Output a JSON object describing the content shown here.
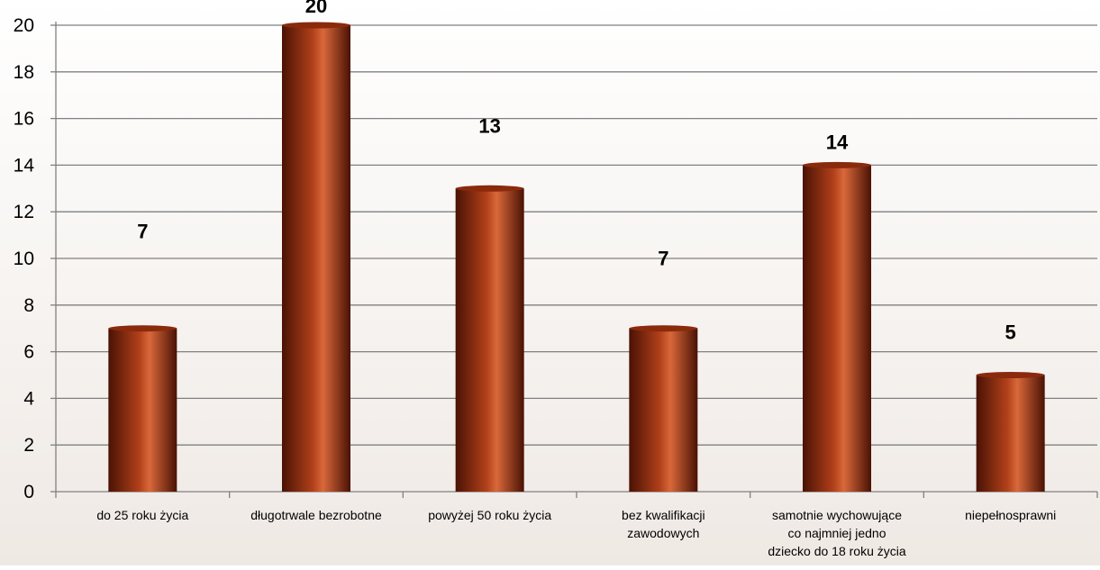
{
  "chart_data": {
    "type": "bar",
    "title": "",
    "xlabel": "",
    "ylabel": "",
    "categories": [
      [
        "do 25 roku życia"
      ],
      [
        "długotrwale bezrobotne"
      ],
      [
        "powyżej 50 roku życia"
      ],
      [
        "bez kwalifikacji",
        "zawodowych"
      ],
      [
        "samotnie wychowujące",
        "co najmniej jedno",
        "dziecko do 18 roku życia"
      ],
      [
        "niepełnosprawni"
      ]
    ],
    "values": [
      7,
      20,
      13,
      7,
      14,
      5
    ],
    "data_labels": [
      "7",
      "20",
      "13",
      "7",
      "14",
      "5"
    ],
    "ylim": [
      0,
      20
    ],
    "yticks": [
      "0",
      "2",
      "4",
      "6",
      "8",
      "10",
      "12",
      "14",
      "16",
      "18",
      "20"
    ],
    "grid": true,
    "legend": "none",
    "colors": {
      "bar_dark": "#4a1204",
      "bar_mid": "#b1401a",
      "bar_light": "#d9683a",
      "bar_top": "#8a2a0c",
      "grid": "#808080",
      "background_top": "#ffffff",
      "background_bottom": "#efe9e4"
    }
  }
}
